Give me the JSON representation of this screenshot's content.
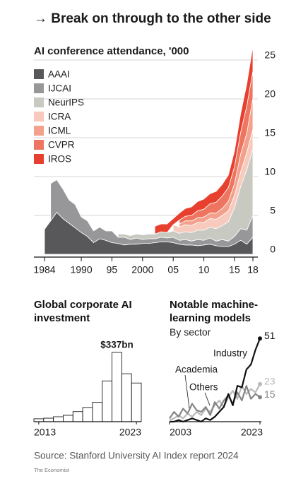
{
  "title": "→ Break on through to the other side",
  "chart_data": [
    {
      "type": "area",
      "stacked": true,
      "title": "AI conference attendance, '000",
      "x": [
        1984,
        1985,
        1986,
        1987,
        1988,
        1989,
        1990,
        1991,
        1992,
        1993,
        1994,
        1995,
        1996,
        1997,
        1998,
        1999,
        2000,
        2001,
        2002,
        2003,
        2004,
        2005,
        2006,
        2007,
        2008,
        2009,
        2010,
        2011,
        2012,
        2013,
        2014,
        2015,
        2016,
        2017,
        2018
      ],
      "series": [
        {
          "name": "AAAI",
          "color": "#58585a",
          "values": [
            3.2,
            4.3,
            5.4,
            4.6,
            4.0,
            3.4,
            2.8,
            2.3,
            1.5,
            2.0,
            1.8,
            1.5,
            1.4,
            1.2,
            1.3,
            1.3,
            1.4,
            1.4,
            1.5,
            1.6,
            1.6,
            1.5,
            1.3,
            1.2,
            1.2,
            1.1,
            1.2,
            1.3,
            1.1,
            1.0,
            1.0,
            1.3,
            1.8,
            1.3,
            2.2
          ]
        },
        {
          "name": "IJCAI",
          "color": "#97979a",
          "values": [
            null,
            4.8,
            4.2,
            3.8,
            3.0,
            3.0,
            2.0,
            2.0,
            1.5,
            1.5,
            1.2,
            1.5,
            0.8,
            1.0,
            0.6,
            0.8,
            0.5,
            0.6,
            0.5,
            0.6,
            0.5,
            0.7,
            0.5,
            0.7,
            0.5,
            0.8,
            0.6,
            0.8,
            0.6,
            0.9,
            0.7,
            1.0,
            1.5,
            1.8,
            2.8
          ]
        },
        {
          "name": "NeurIPS",
          "color": "#c8cac2",
          "values": [
            null,
            null,
            null,
            null,
            null,
            null,
            null,
            null,
            null,
            null,
            null,
            null,
            0.4,
            0.4,
            0.5,
            0.5,
            0.6,
            0.6,
            0.6,
            0.7,
            0.7,
            0.8,
            0.9,
            1.0,
            1.1,
            1.2,
            1.3,
            1.4,
            1.6,
            1.8,
            2.5,
            3.7,
            5.4,
            7.8,
            8.5
          ]
        },
        {
          "name": "ICRA",
          "color": "#f8cabd",
          "values": [
            null,
            null,
            null,
            null,
            null,
            null,
            null,
            null,
            null,
            null,
            null,
            null,
            null,
            null,
            null,
            null,
            null,
            null,
            null,
            null,
            null,
            0.8,
            0.8,
            0.9,
            0.9,
            1.0,
            1.0,
            1.1,
            1.2,
            1.3,
            1.4,
            1.6,
            1.9,
            2.2,
            2.6
          ]
        },
        {
          "name": "ICML",
          "color": "#f3a18d",
          "values": [
            null,
            null,
            null,
            null,
            null,
            null,
            null,
            null,
            null,
            null,
            null,
            null,
            null,
            null,
            null,
            null,
            null,
            null,
            null,
            null,
            null,
            null,
            0.4,
            0.5,
            0.6,
            0.6,
            0.7,
            0.7,
            0.8,
            0.9,
            1.2,
            1.5,
            2.3,
            2.5,
            4.0
          ]
        },
        {
          "name": "CVPR",
          "color": "#ee7660",
          "values": [
            null,
            null,
            null,
            null,
            null,
            null,
            null,
            null,
            null,
            null,
            null,
            null,
            null,
            null,
            null,
            null,
            null,
            null,
            null,
            null,
            null,
            null,
            0.5,
            0.6,
            0.7,
            0.9,
            1.0,
            1.2,
            1.4,
            1.6,
            1.8,
            2.2,
            2.8,
            3.5,
            3.5
          ]
        },
        {
          "name": "IROS",
          "color": "#e8402f",
          "values": [
            null,
            null,
            null,
            null,
            null,
            null,
            null,
            null,
            null,
            null,
            null,
            null,
            null,
            null,
            null,
            null,
            null,
            null,
            1.0,
            1.0,
            1.1,
            0.8,
            0.9,
            1.0,
            1.1,
            1.2,
            1.3,
            1.3,
            1.4,
            1.5,
            1.6,
            2.0,
            2.4,
            2.8,
            3.2
          ]
        }
      ],
      "xlim": [
        1984,
        2018
      ],
      "xticks": [
        1984,
        1990,
        {
          "value": 1995,
          "label": "95"
        },
        2000,
        {
          "value": 2005,
          "label": "05"
        },
        {
          "value": 2010,
          "label": "10"
        },
        {
          "value": 2015,
          "label": "15"
        },
        {
          "value": 2018,
          "label": "18"
        }
      ],
      "ylim": [
        0,
        27
      ],
      "yticks": [
        0,
        5,
        10,
        15,
        20,
        25
      ],
      "grid": true,
      "legend": "top-left"
    },
    {
      "type": "bar",
      "title": "Global corporate AI investment",
      "x": [
        2013,
        2014,
        2015,
        2016,
        2017,
        2018,
        2019,
        2020,
        2021,
        2022,
        2023
      ],
      "values": [
        14,
        17,
        24,
        31,
        49,
        69,
        94,
        198,
        337,
        233,
        188
      ],
      "value_labels": [
        null,
        null,
        null,
        null,
        null,
        null,
        null,
        null,
        "$337bn",
        null,
        null
      ],
      "color": "#ffffff",
      "edge_color": "#1a1a1a",
      "xticks": [
        2013,
        2023
      ],
      "ylim": [
        0,
        340
      ]
    },
    {
      "type": "line",
      "title": "Notable machine-learning models",
      "subtitle": "By sector",
      "x": [
        2003,
        2004,
        2005,
        2006,
        2007,
        2008,
        2009,
        2010,
        2011,
        2012,
        2013,
        2014,
        2015,
        2016,
        2017,
        2018,
        2019,
        2020,
        2021,
        2022,
        2023
      ],
      "series": [
        {
          "name": "Industry",
          "color": "#111111",
          "values": [
            0,
            0,
            1,
            0,
            1,
            2,
            1,
            0,
            2,
            1,
            3,
            6,
            9,
            17,
            10,
            22,
            21,
            32,
            35,
            44,
            51
          ]
        },
        {
          "name": "Academia",
          "color": "#858585",
          "values": [
            2,
            6,
            3,
            8,
            5,
            11,
            7,
            6,
            9,
            4,
            12,
            8,
            13,
            16,
            11,
            18,
            13,
            22,
            14,
            17,
            15
          ]
        },
        {
          "name": "Others",
          "color": "#b9b9b9",
          "values": [
            1,
            2,
            4,
            2,
            5,
            3,
            6,
            4,
            8,
            6,
            10,
            13,
            9,
            15,
            19,
            14,
            22,
            17,
            20,
            18,
            23
          ]
        }
      ],
      "xlim": [
        2003,
        2023
      ],
      "xticks": [
        2003,
        2023
      ],
      "ylim": [
        0,
        55
      ]
    }
  ],
  "source": "Source: Stanford University AI Index report 2024",
  "credit": "The Economist"
}
